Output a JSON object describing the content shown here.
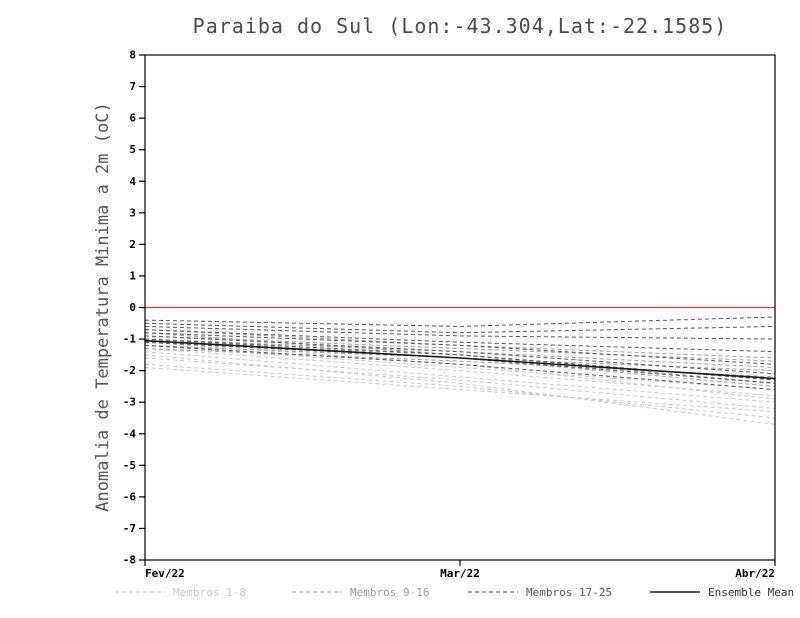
{
  "chart_data": {
    "type": "line",
    "title": "Paraiba do Sul (Lon:-43.304,Lat:-22.1585)",
    "ylabel": "Anomalia de Temperatura Minima a 2m (oC)",
    "xlabel": "",
    "x_ticks": [
      "Fev/22",
      "Mar/22",
      "Abr/22"
    ],
    "ylim": [
      -8,
      8
    ],
    "y_tick_step": 1,
    "grid": false,
    "legend_position": "bottom",
    "zero_line": {
      "y": 0,
      "color": "#e13b3b"
    },
    "groups": [
      {
        "name": "Membros 1-8",
        "color": "#c9c9c9",
        "style": "dashed"
      },
      {
        "name": "Membros 9-16",
        "color": "#9b9b9b",
        "style": "dashed"
      },
      {
        "name": "Membros 17-25",
        "color": "#565656",
        "style": "dashed"
      },
      {
        "name": "Ensemble Mean",
        "color": "#1a1a1a",
        "style": "solid"
      }
    ],
    "members": [
      {
        "group": 0,
        "values": [
          -1.9,
          -2.6,
          -3.3
        ]
      },
      {
        "group": 0,
        "values": [
          -1.8,
          -2.5,
          -3.5
        ]
      },
      {
        "group": 0,
        "values": [
          -1.6,
          -2.3,
          -3.2
        ]
      },
      {
        "group": 0,
        "values": [
          -1.5,
          -2.4,
          -3.7
        ]
      },
      {
        "group": 0,
        "values": [
          -1.4,
          -2.2,
          -3.0
        ]
      },
      {
        "group": 0,
        "values": [
          -1.3,
          -2.0,
          -2.8
        ]
      },
      {
        "group": 0,
        "values": [
          -1.2,
          -1.9,
          -2.6
        ]
      },
      {
        "group": 0,
        "values": [
          -1.1,
          -1.8,
          -2.9
        ]
      },
      {
        "group": 1,
        "values": [
          -1.3,
          -1.7,
          -2.2
        ]
      },
      {
        "group": 1,
        "values": [
          -1.2,
          -1.6,
          -2.0
        ]
      },
      {
        "group": 1,
        "values": [
          -1.1,
          -1.5,
          -2.3
        ]
      },
      {
        "group": 1,
        "values": [
          -1.0,
          -1.4,
          -1.9
        ]
      },
      {
        "group": 1,
        "values": [
          -0.9,
          -1.3,
          -1.7
        ]
      },
      {
        "group": 1,
        "values": [
          -0.8,
          -1.5,
          -2.4
        ]
      },
      {
        "group": 1,
        "values": [
          -0.7,
          -1.2,
          -1.6
        ]
      },
      {
        "group": 1,
        "values": [
          -1.0,
          -1.6,
          -2.5
        ]
      },
      {
        "group": 2,
        "values": [
          -0.4,
          -0.6,
          -0.3
        ]
      },
      {
        "group": 2,
        "values": [
          -0.5,
          -0.8,
          -0.6
        ]
      },
      {
        "group": 2,
        "values": [
          -0.6,
          -0.9,
          -1.0
        ]
      },
      {
        "group": 2,
        "values": [
          -0.7,
          -1.1,
          -1.4
        ]
      },
      {
        "group": 2,
        "values": [
          -0.8,
          -1.2,
          -1.8
        ]
      },
      {
        "group": 2,
        "values": [
          -0.9,
          -1.4,
          -2.1
        ]
      },
      {
        "group": 2,
        "values": [
          -1.0,
          -1.5,
          -2.3
        ]
      },
      {
        "group": 2,
        "values": [
          -1.1,
          -1.6,
          -2.4
        ]
      },
      {
        "group": 2,
        "values": [
          -1.2,
          -1.8,
          -2.6
        ]
      }
    ],
    "ensemble_mean": [
      -1.05,
      -1.6,
      -2.25
    ]
  }
}
